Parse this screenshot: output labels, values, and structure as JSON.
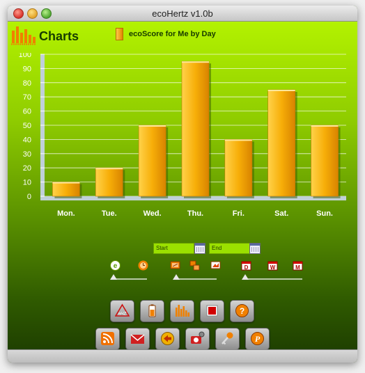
{
  "window": {
    "title": "ecoHertz v1.0b"
  },
  "header": {
    "title": "Charts",
    "legend_label": "ecoScore for Me by Day"
  },
  "chart_data": {
    "type": "bar",
    "title": "",
    "categories": [
      "Mon.",
      "Tue.",
      "Wed.",
      "Thu.",
      "Fri.",
      "Sat.",
      "Sun."
    ],
    "series": [
      {
        "name": "ecoScore for Me by Day",
        "values": [
          10,
          20,
          50,
          95,
          40,
          75,
          50
        ]
      }
    ],
    "ylim": [
      0,
      100
    ],
    "yticks": [
      0,
      10,
      20,
      30,
      40,
      50,
      60,
      70,
      80,
      90,
      100
    ],
    "grid": true,
    "legend": "top"
  },
  "controls": {
    "start_label": "Start",
    "end_label": "End",
    "period_buttons": [
      "D",
      "W",
      "M"
    ]
  },
  "colors": {
    "bar": "#f0a800",
    "bar_dark": "#d98a00",
    "axis": "#c0d0d8",
    "text": "#ffffff"
  },
  "icons": {
    "row1": [
      "ehz-button",
      "battery-button",
      "charts-button",
      "chip-button",
      "help-button"
    ],
    "row2": [
      "rss-button",
      "mail-button",
      "back-button",
      "camera-settings-button",
      "key-button",
      "paypal-button"
    ]
  }
}
